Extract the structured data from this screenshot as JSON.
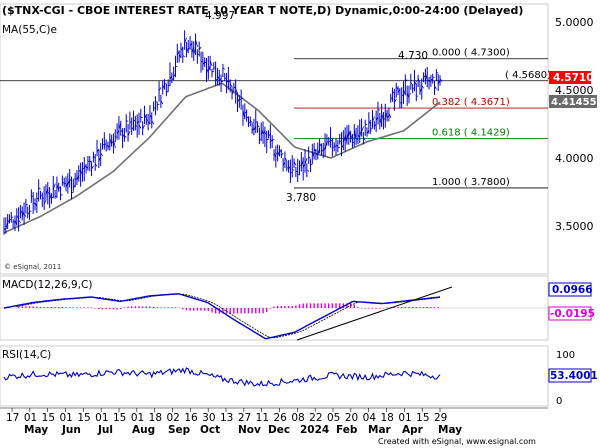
{
  "header": {
    "title": "($TNX-CGI - CBOE INTEREST RATE 10 YEAR T NOTE,D) Dynamic,0:00-24:00 (Delayed)",
    "ma_label": "MA(55,C)e",
    "copyright": "© eSignal, 2011"
  },
  "price_axis": {
    "ticks": [
      "5.0000",
      "4.5000",
      "4.0000",
      "3.5000"
    ],
    "last_price": "4.5710",
    "ma_value": "4.414555"
  },
  "annotations": {
    "high": "4.997",
    "low": "3.780",
    "recent_high": "4.730"
  },
  "fib_levels": [
    {
      "label": "0.000 ( 4.7300)",
      "value": 4.73,
      "color": "#000000"
    },
    {
      "label": "( 4.5680)",
      "value": 4.568,
      "color": "#000000"
    },
    {
      "label": "0.382 ( 4.3671)",
      "value": 4.3671,
      "color": "#c00000"
    },
    {
      "label": "0.618 ( 4.1429)",
      "value": 4.1429,
      "color": "#008000"
    },
    {
      "label": "1.000 ( 3.7800)",
      "value": 3.78,
      "color": "#000000"
    }
  ],
  "macd": {
    "label": "MACD(12,26,9,C)",
    "value_pos": "0.0966",
    "value_neg": "-0.0195"
  },
  "rsi": {
    "label": "RSI(14,C)",
    "value": "53.4001",
    "tick_high": "100",
    "tick_low": "0"
  },
  "x_axis": {
    "day_ticks": [
      "17",
      "01",
      "15",
      "01",
      "15",
      "01",
      "15",
      "01",
      "18",
      "02",
      "16",
      "30",
      "13",
      "27",
      "11",
      "26",
      "08",
      "22",
      "05",
      "20",
      "04",
      "18",
      "01",
      "15",
      "29"
    ],
    "month_labels": [
      "May",
      "Jun",
      "Jul",
      "Aug",
      "Sep",
      "Oct",
      "Nov",
      "Dec",
      "2024",
      "Feb",
      "Mar",
      "Apr",
      "May"
    ],
    "footer": "Created with eSignal, www.esignal.com"
  },
  "colors": {
    "price_bars": "#0000cc",
    "ma_line": "#707070",
    "macd_line": "#0000cc",
    "macd_signal": "#000000",
    "macd_hist": "#dd00dd",
    "rsi_line": "#0000cc",
    "price_box": "#ff0000"
  },
  "chart_data": {
    "type": "line",
    "title": "($TNX-CGI - CBOE INTEREST RATE 10 YEAR T NOTE,D) Dynamic,0:00-24:00 (Delayed)",
    "xlabel": "",
    "ylabel": "",
    "ylim": [
      3.2,
      5.18
    ],
    "x": [
      "May",
      "Jun",
      "Jul",
      "Aug",
      "Sep",
      "Oct",
      "Nov",
      "Dec",
      "2024",
      "Feb",
      "Mar",
      "Apr",
      "May"
    ],
    "series": [
      {
        "name": "$TNX close",
        "values": [
          3.5,
          3.72,
          3.85,
          4.15,
          4.3,
          4.85,
          4.6,
          4.2,
          3.9,
          4.1,
          4.2,
          4.5,
          4.57
        ]
      },
      {
        "name": "MA(55,C)e",
        "values": [
          3.45,
          3.57,
          3.72,
          3.9,
          4.15,
          4.45,
          4.55,
          4.35,
          4.08,
          4.0,
          4.12,
          4.2,
          4.41
        ]
      }
    ]
  }
}
